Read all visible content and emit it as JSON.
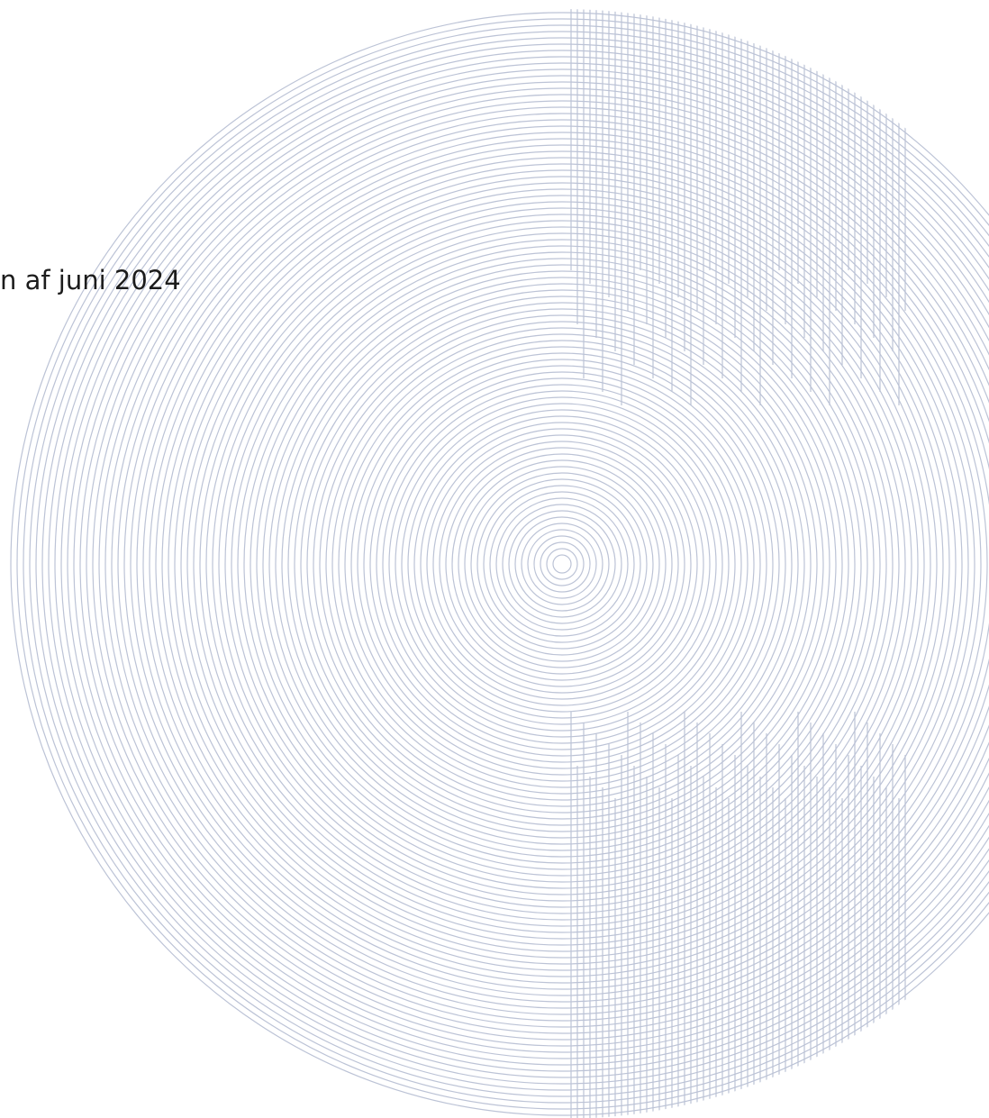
{
  "cover": {
    "date_text": "n af juni 2024"
  },
  "colors": {
    "line": "#bcc3d6",
    "text": "#1c1c1c",
    "background": "#ffffff"
  }
}
